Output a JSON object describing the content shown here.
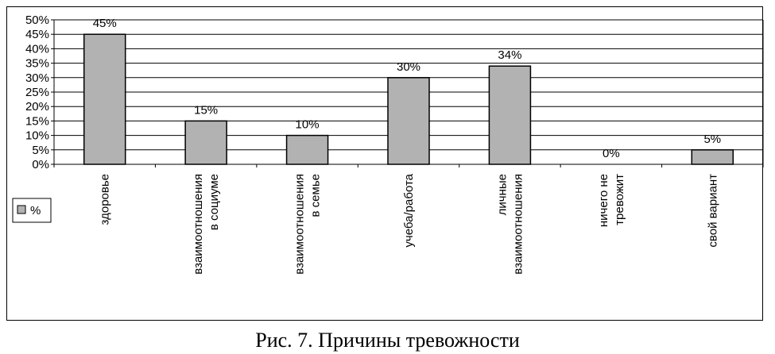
{
  "caption": "Рис. 7. Причины тревожности",
  "chart_data": {
    "type": "bar",
    "title": "",
    "xlabel": "",
    "ylabel": "",
    "categories": [
      [
        "здоровье"
      ],
      [
        "взаимоотношения",
        "в социуме"
      ],
      [
        "взаимоотношения",
        "в семье"
      ],
      [
        "учеба/работа"
      ],
      [
        "личные",
        "взаимоотношения"
      ],
      [
        "ничего не",
        "тревожит"
      ],
      [
        "свой вариант"
      ]
    ],
    "series": [
      {
        "name": "%",
        "values": [
          45,
          15,
          10,
          30,
          34,
          0,
          5
        ],
        "color": "#b2b2b2"
      }
    ],
    "data_labels": [
      "45%",
      "15%",
      "10%",
      "30%",
      "34%",
      "0%",
      "5%"
    ],
    "y_ticks": [
      "0%",
      "5%",
      "10%",
      "15%",
      "20%",
      "25%",
      "30%",
      "35%",
      "40%",
      "45%",
      "50%"
    ],
    "ylim": [
      0,
      50
    ],
    "grid": true,
    "legend_position": "left",
    "legend_label": "%"
  }
}
